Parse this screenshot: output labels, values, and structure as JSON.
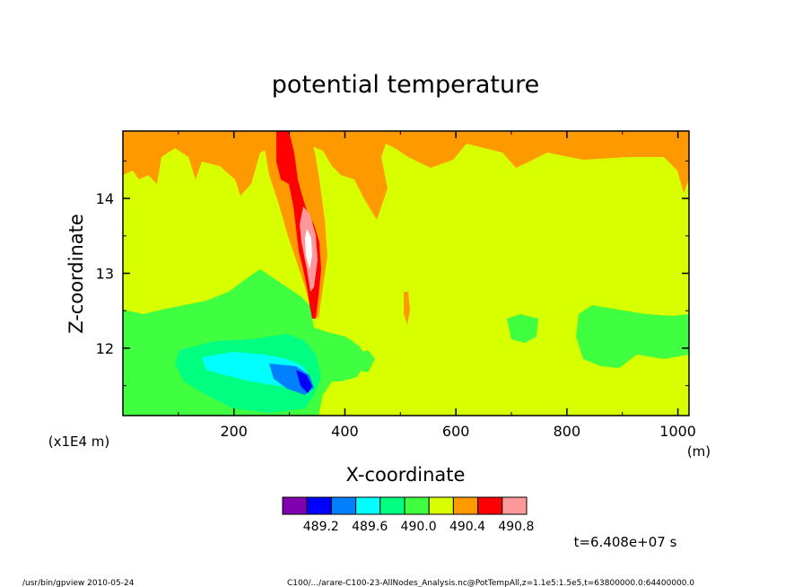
{
  "chart_data": {
    "type": "heatmap",
    "title": "potential temperature",
    "xlabel": "X-coordinate",
    "ylabel": "Z-coordinate",
    "x_unit": "(m)",
    "y_multiplier": "(x1E4 m)",
    "x_range": [
      0,
      1020
    ],
    "y_range": [
      11.1,
      14.9
    ],
    "x_ticks": [
      200,
      400,
      600,
      800,
      1000
    ],
    "y_ticks": [
      12,
      13,
      14
    ],
    "time_label": "t=6.408e+07 s",
    "colorbar": {
      "colors": [
        "#8000b0",
        "#0000ff",
        "#0080ff",
        "#00ffff",
        "#00ff80",
        "#40ff40",
        "#d8ff00",
        "#ff9900",
        "#ff0000",
        "#ff9999"
      ],
      "labels": [
        "489.2",
        "489.6",
        "490.0",
        "490.4",
        "490.8"
      ],
      "background_level": "490.4"
    },
    "regions": [
      {
        "level": 7,
        "description": "band along top",
        "x": [
          0,
          1020
        ],
        "z": [
          14.45,
          14.9
        ]
      },
      {
        "level": 8,
        "description": "red plume near x=300-350",
        "x": [
          280,
          360
        ],
        "z": [
          12.5,
          14.9
        ]
      },
      {
        "level": 9,
        "description": "pink core",
        "x": [
          325,
          350
        ],
        "z": [
          12.9,
          13.5
        ]
      },
      {
        "level": 5,
        "description": "green band left",
        "x": [
          0,
          400
        ],
        "z": [
          11.1,
          12.6
        ]
      },
      {
        "level": 3,
        "description": "cyan patch",
        "x": [
          200,
          340
        ],
        "z": [
          11.5,
          11.9
        ]
      },
      {
        "level": 1,
        "description": "blue patch",
        "x": [
          320,
          360
        ],
        "z": [
          11.5,
          11.8
        ]
      },
      {
        "level": 5,
        "description": "green patch right",
        "x": [
          800,
          1020
        ],
        "z": [
          11.8,
          12.5
        ]
      }
    ]
  },
  "footer": {
    "left": "/usr/bin/gpview   2010-05-24",
    "right": "C100/.../arare-C100-23-AllNodes_Analysis.nc@PotTempAll,z=1.1e5:1.5e5,t=63800000.0:64400000.0"
  }
}
